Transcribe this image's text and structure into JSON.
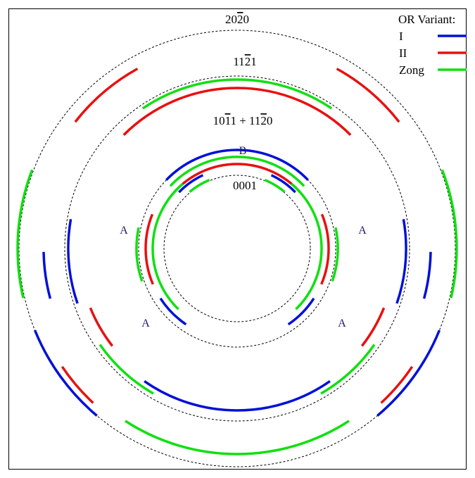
{
  "legend": {
    "title": "OR Variant:",
    "items": [
      {
        "label": "I",
        "color": "#0010d8"
      },
      {
        "label": "II",
        "color": "#e81010"
      },
      {
        "label": "Zong",
        "color": "#10e010"
      }
    ]
  },
  "ring_labels": {
    "r2020": {
      "pre": "20",
      "bar": "2",
      "post": "0"
    },
    "r1121": {
      "pre": "11",
      "bar": "2",
      "post": "1"
    },
    "r1011": {
      "pre": "10",
      "bar": "1",
      "mid": "1 + 11",
      "bar2": "2",
      "post": "0"
    },
    "r0001": "0001"
  },
  "arc_labels": {
    "B": "B",
    "A_left": "A",
    "A_right": "A",
    "A_lower_left": "A",
    "A_lower_right": "A"
  },
  "colors": {
    "I": "#0010d8",
    "II": "#e81010",
    "Zong": "#10e010",
    "ring": "#000000"
  }
}
